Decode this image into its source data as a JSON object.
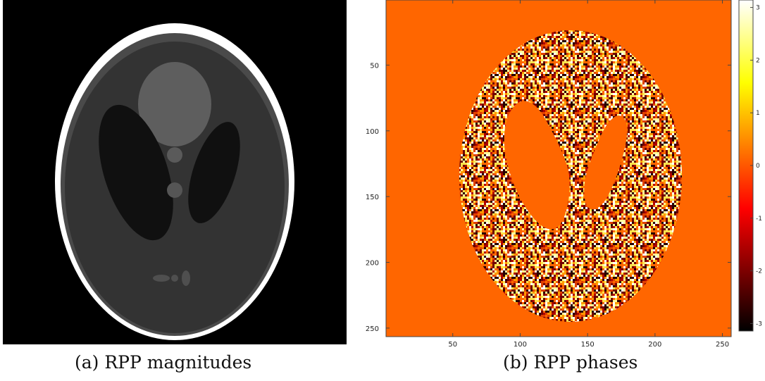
{
  "panel_a": {
    "caption": "(a) RPP magnitudes"
  },
  "panel_b": {
    "caption": "(b) RPP phases",
    "x_ticks": [
      "50",
      "100",
      "150",
      "200",
      "250"
    ],
    "y_ticks": [
      "50",
      "100",
      "150",
      "200",
      "250"
    ],
    "colorbar_ticks": [
      "3",
      "2",
      "1",
      "0",
      "-1",
      "-2",
      "-3"
    ],
    "background_color": "#FF6600",
    "colormap": "hot"
  }
}
